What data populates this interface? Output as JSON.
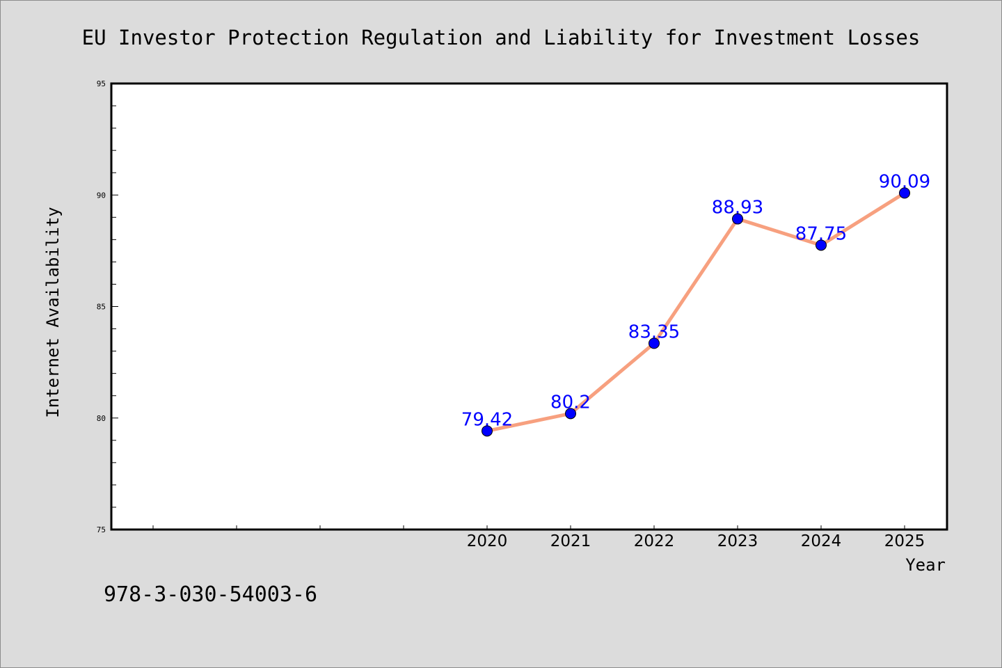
{
  "chart_data": {
    "type": "line",
    "title": "EU Investor Protection Regulation and Liability for Investment Losses",
    "xlabel": "Year",
    "ylabel": "Internet Availability",
    "categories": [
      "2020",
      "2021",
      "2022",
      "2023",
      "2024",
      "2025"
    ],
    "series": [
      {
        "values": [
          79.42,
          80.2,
          83.35,
          88.93,
          87.75,
          90.09
        ],
        "data_labels": [
          "79.42",
          "80.2",
          "83.35",
          "88.93",
          "87.75",
          "90.09"
        ]
      }
    ],
    "ylim": [
      75,
      95
    ],
    "y_ticks": [
      "75",
      "80",
      "85",
      "90",
      "95"
    ],
    "grid": false,
    "legend": "none",
    "line_color": "#f7a07f",
    "marker_color": "#0000ff",
    "label_color": "#0000ff"
  },
  "annotation": "978-3-030-54003-6",
  "colors": {
    "background": "#dcdcdc",
    "plot_area": "#ffffff",
    "line": "#f7a07f",
    "marker": "#0000ff"
  }
}
